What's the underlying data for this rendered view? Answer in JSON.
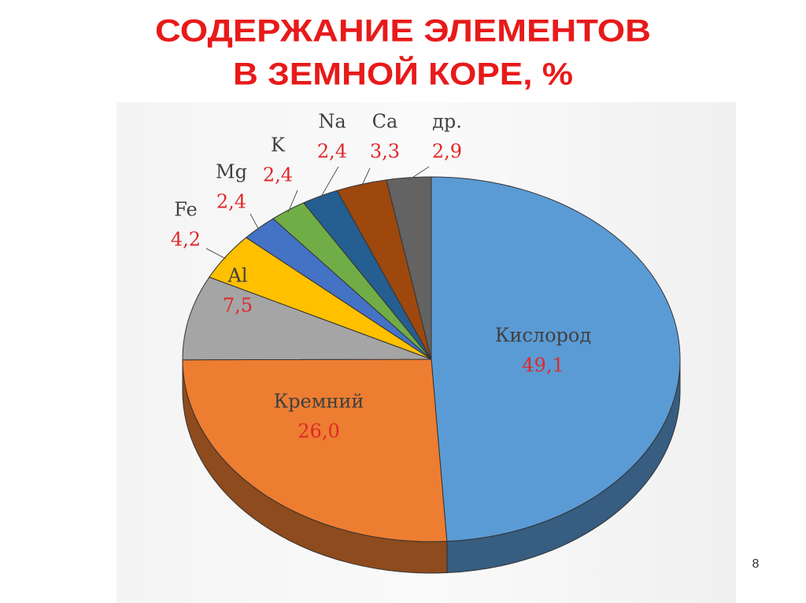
{
  "chart_data": {
    "type": "pie3d",
    "title": [
      "СОДЕРЖАНИЕ ЭЛЕМЕНТОВ",
      "В ЗЕМНОЙ КОРЕ, %"
    ],
    "categories": [
      "Кислород",
      "Кремний",
      "Al",
      "Fe",
      "Mg",
      "K",
      "Na",
      "Ca",
      "др."
    ],
    "values": [
      49.1,
      26.0,
      7.5,
      4.2,
      2.4,
      2.4,
      2.4,
      3.3,
      2.9
    ],
    "value_labels": [
      "49,1",
      "26,0",
      "7,5",
      "4,2",
      "2,4",
      "2,4",
      "2,4",
      "3,3",
      "2,9"
    ],
    "colors": [
      "#5b9bd5",
      "#ed7d31",
      "#a5a5a5",
      "#ffc000",
      "#4472c4",
      "#70ad47",
      "#255e91",
      "#9e480e",
      "#636363"
    ]
  },
  "page_number": "8"
}
